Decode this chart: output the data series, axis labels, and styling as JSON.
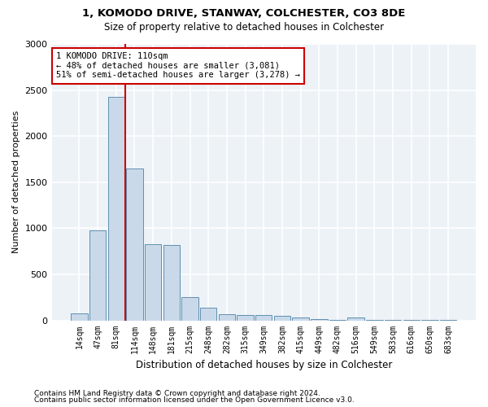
{
  "title": "1, KOMODO DRIVE, STANWAY, COLCHESTER, CO3 8DE",
  "subtitle": "Size of property relative to detached houses in Colchester",
  "xlabel": "Distribution of detached houses by size in Colchester",
  "ylabel": "Number of detached properties",
  "bar_categories": [
    "14sqm",
    "47sqm",
    "81sqm",
    "114sqm",
    "148sqm",
    "181sqm",
    "215sqm",
    "248sqm",
    "282sqm",
    "315sqm",
    "349sqm",
    "382sqm",
    "415sqm",
    "449sqm",
    "482sqm",
    "516sqm",
    "549sqm",
    "583sqm",
    "616sqm",
    "650sqm",
    "683sqm"
  ],
  "bar_values": [
    75,
    975,
    2430,
    1650,
    830,
    820,
    250,
    135,
    70,
    60,
    55,
    45,
    30,
    10,
    8,
    30,
    5,
    3,
    3,
    2,
    2
  ],
  "bar_color": "#c9d9ea",
  "bar_edge_color": "#6090b0",
  "ylim": [
    0,
    3000
  ],
  "yticks": [
    0,
    500,
    1000,
    1500,
    2000,
    2500,
    3000
  ],
  "vline_x": 2.5,
  "vline_color": "#cc0000",
  "annotation_text": "1 KOMODO DRIVE: 110sqm\n← 48% of detached houses are smaller (3,081)\n51% of semi-detached houses are larger (3,278) →",
  "annotation_box_color": "#ffffff",
  "annotation_box_edge": "#cc0000",
  "footer_line1": "Contains HM Land Registry data © Crown copyright and database right 2024.",
  "footer_line2": "Contains public sector information licensed under the Open Government Licence v3.0.",
  "background_color": "#edf2f7",
  "grid_color": "#ffffff"
}
